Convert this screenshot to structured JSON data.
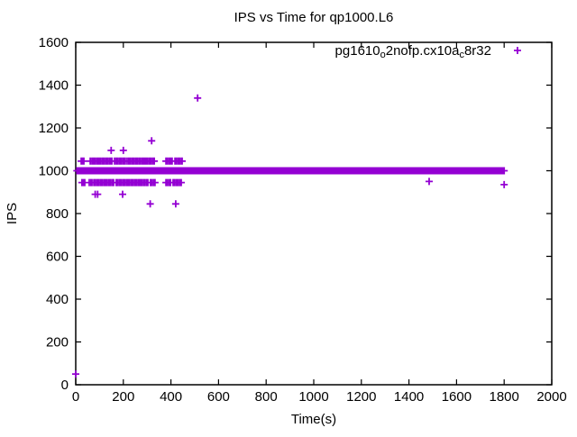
{
  "figure": {
    "background": "#ffffff",
    "border_color": "#000000",
    "text_color": "#000000"
  },
  "chart_data": {
    "type": "scatter",
    "title": "IPS vs Time for qp1000.L6",
    "xlabel": "Time(s)",
    "ylabel": "IPS",
    "xlim": [
      0,
      2000
    ],
    "ylim": [
      0,
      1600
    ],
    "xticks": [
      0,
      200,
      400,
      600,
      800,
      1000,
      1200,
      1400,
      1600,
      1800,
      2000
    ],
    "yticks": [
      0,
      200,
      400,
      600,
      800,
      1000,
      1200,
      1400,
      1600
    ],
    "grid": false,
    "legend_position": "top-right-inside",
    "series": [
      {
        "name": "pg1610_o2nofp.cx10a_c8r32",
        "label_parts": [
          {
            "text": "pg1610"
          },
          {
            "text": "o",
            "subscript": true
          },
          {
            "text": "2nofp.cx10a"
          },
          {
            "text": "c",
            "subscript": true
          },
          {
            "text": "8r32"
          }
        ],
        "color": "#9400d3",
        "marker": "plus",
        "dense_band": {
          "ips": 1000,
          "time_start": 5,
          "time_end": 1800,
          "time_step": 6
        },
        "cluster_rows": [
          {
            "ips": 1045,
            "time_step": 7,
            "segments": [
              [
                23,
                34
              ],
              [
                61,
                95
              ],
              [
                98,
                152
              ],
              [
                163,
                208
              ],
              [
                216,
                291
              ],
              [
                295,
                330
              ],
              [
                379,
                405
              ],
              [
                417,
                447
              ]
            ]
          },
          {
            "ips": 945,
            "time_step": 7,
            "segments": [
              [
                26,
                38
              ],
              [
                57,
                68
              ],
              [
                76,
                121
              ],
              [
                125,
                159
              ],
              [
                170,
                220
              ],
              [
                227,
                272
              ],
              [
                277,
                303
              ],
              [
                314,
                333
              ],
              [
                379,
                398
              ],
              [
                409,
                443
              ]
            ]
          }
        ],
        "points": [
          [
            0,
            50
          ],
          [
            82,
            890
          ],
          [
            92,
            890
          ],
          [
            197,
            890
          ],
          [
            149,
            1095
          ],
          [
            200,
            1095
          ],
          [
            319,
            1140
          ],
          [
            313,
            845
          ],
          [
            420,
            845
          ],
          [
            512,
            1340
          ],
          [
            1485,
            950
          ],
          [
            1800,
            935
          ]
        ]
      }
    ]
  }
}
